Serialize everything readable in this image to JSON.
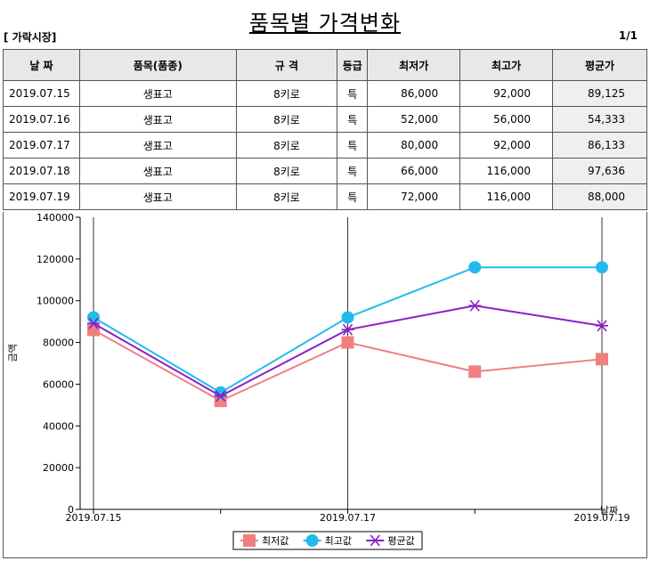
{
  "header": {
    "title": "품목별 가격변화",
    "market": "[ 가락시장]",
    "page": "1/1"
  },
  "table": {
    "columns": [
      "날 짜",
      "품목(품종)",
      "규 격",
      "등급",
      "최저가",
      "최고가",
      "평균가"
    ],
    "rows": [
      [
        "2019.07.15",
        "생표고",
        "8키로",
        "특",
        "86,000",
        "92,000",
        "89,125"
      ],
      [
        "2019.07.16",
        "생표고",
        "8키로",
        "특",
        "52,000",
        "56,000",
        "54,333"
      ],
      [
        "2019.07.17",
        "생표고",
        "8키로",
        "특",
        "80,000",
        "92,000",
        "86,133"
      ],
      [
        "2019.07.18",
        "생표고",
        "8키로",
        "특",
        "66,000",
        "116,000",
        "97,636"
      ],
      [
        "2019.07.19",
        "생표고",
        "8키로",
        "특",
        "72,000",
        "116,000",
        "88,000"
      ]
    ]
  },
  "chart_data": {
    "type": "line",
    "categories": [
      "2019.07.15",
      "2019.07.16",
      "2019.07.17",
      "2019.07.18",
      "2019.07.19"
    ],
    "x_tick_labels": [
      "2019.07.15",
      "2019.07.17",
      "2019.07.19"
    ],
    "xlabel": "날짜",
    "ylabel": "금액",
    "ylim": [
      0,
      140000
    ],
    "y_ticks": [
      0,
      20000,
      40000,
      60000,
      80000,
      100000,
      120000,
      140000
    ],
    "grid": "vertical",
    "legend": "bottom",
    "series": [
      {
        "name": "최저값",
        "values": [
          86000,
          52000,
          80000,
          66000,
          72000
        ],
        "color": "#f08080",
        "marker": "square"
      },
      {
        "name": "최고값",
        "values": [
          92000,
          56000,
          92000,
          116000,
          116000
        ],
        "color": "#22bbee",
        "marker": "circle"
      },
      {
        "name": "평균값",
        "values": [
          89125,
          54333,
          86133,
          97636,
          88000
        ],
        "color": "#8a1fc8",
        "marker": "star"
      }
    ]
  }
}
